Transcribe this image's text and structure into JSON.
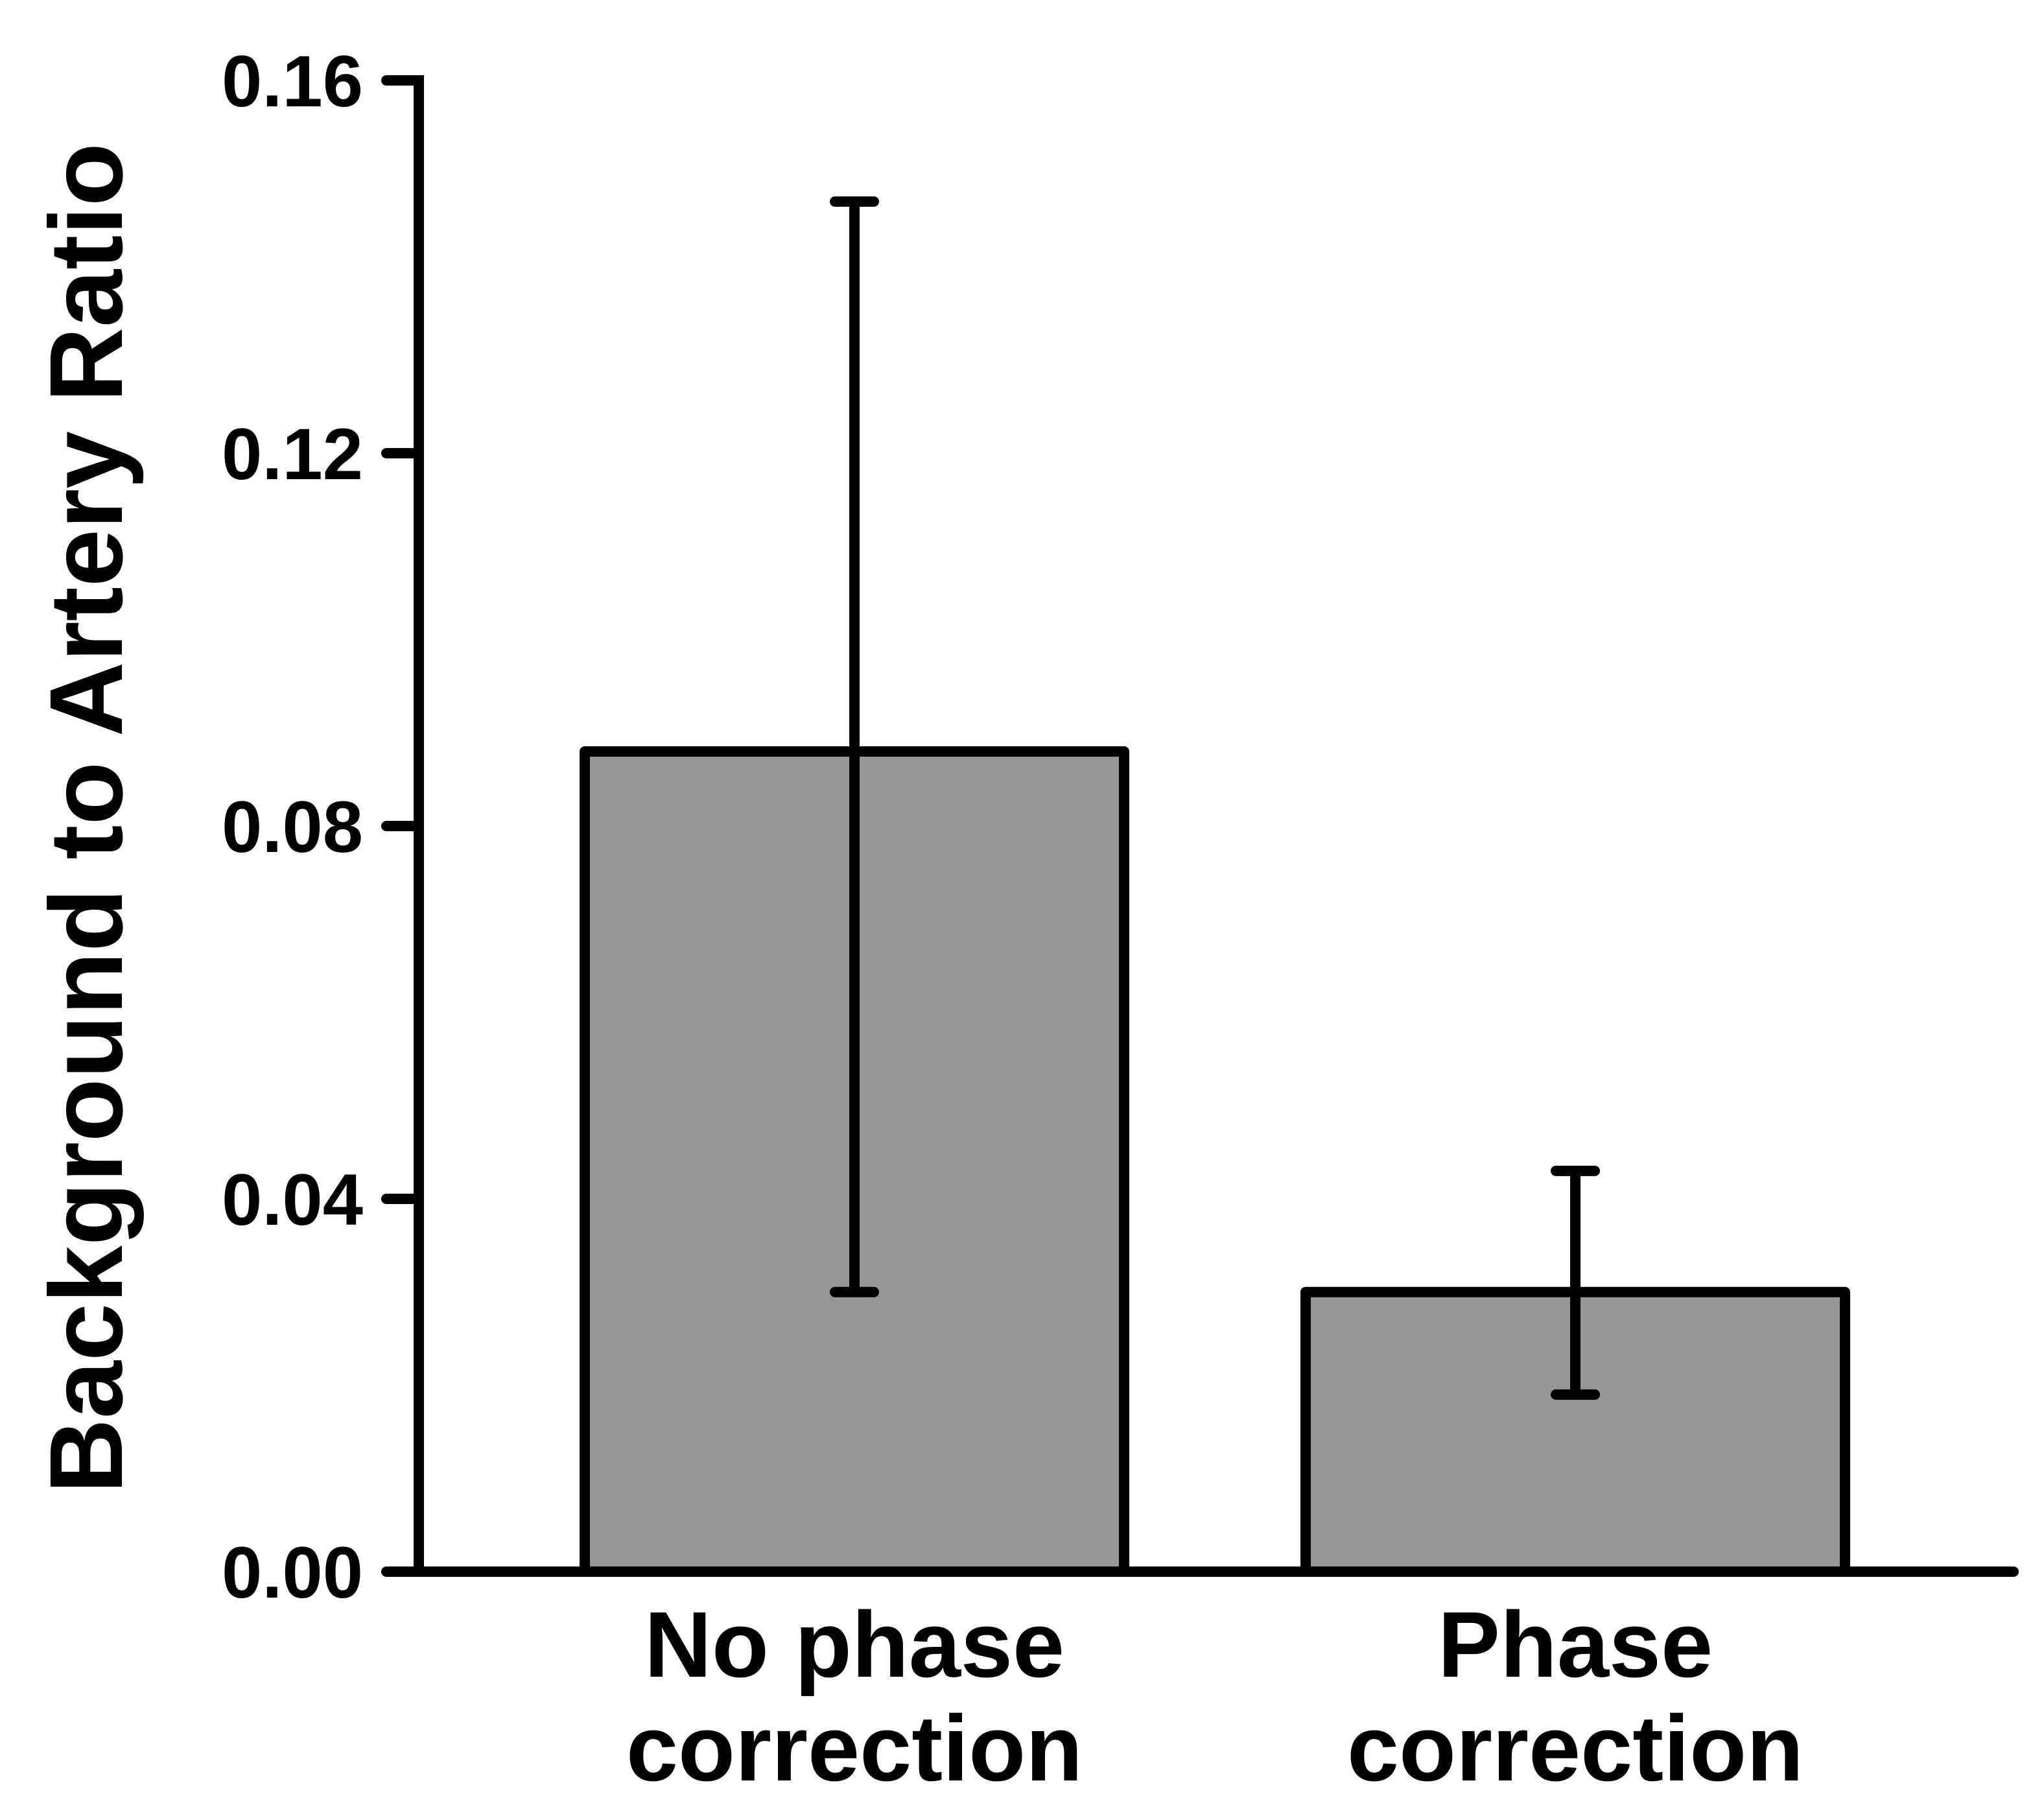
{
  "chart_data": {
    "type": "bar",
    "categories": [
      [
        "No phase",
        "correction"
      ],
      [
        "Phase",
        "correction"
      ]
    ],
    "values": [
      0.088,
      0.03
    ],
    "error_bars": [
      {
        "low": 0.03,
        "high": 0.147
      },
      {
        "low": 0.019,
        "high": 0.043
      }
    ],
    "ylabel": "Background to Artery Ratio",
    "ylim": [
      0,
      0.16
    ],
    "yticks": [
      0.0,
      0.04,
      0.08,
      0.12,
      0.16
    ],
    "ytick_labels": [
      "0.00",
      "0.04",
      "0.08",
      "0.12",
      "0.16"
    ],
    "grid": false,
    "colors": {
      "bar_fill": "#969696",
      "stroke": "#000000"
    }
  }
}
